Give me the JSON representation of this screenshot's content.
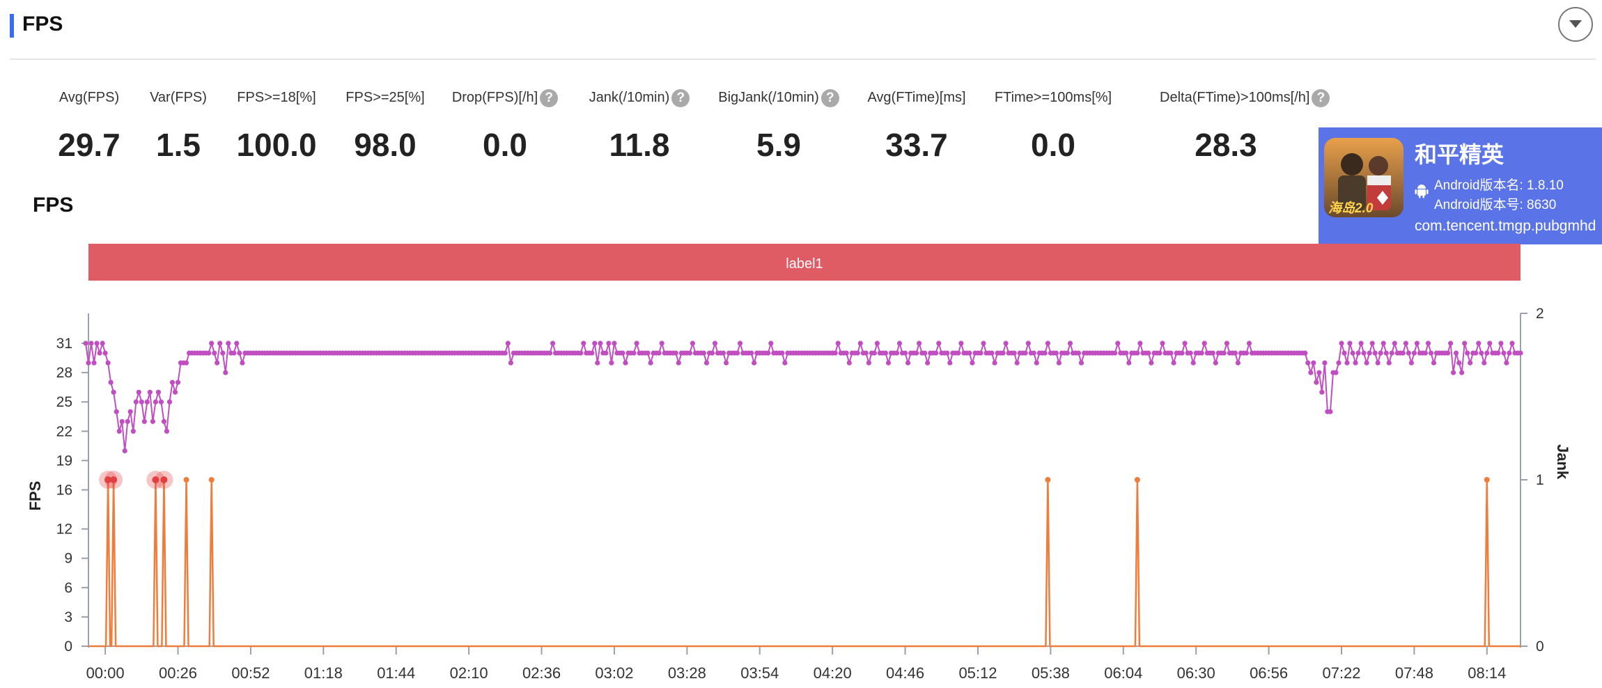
{
  "header": {
    "title": "FPS"
  },
  "metrics": [
    {
      "label": "Avg(FPS)",
      "value": "29.7",
      "help": false
    },
    {
      "label": "Var(FPS)",
      "value": "1.5",
      "help": false
    },
    {
      "label": "FPS>=18[%]",
      "value": "100.0",
      "help": false
    },
    {
      "label": "FPS>=25[%]",
      "value": "98.0",
      "help": false
    },
    {
      "label": "Drop(FPS)[/h]",
      "value": "0.0",
      "help": true
    },
    {
      "label": "Jank(/10min)",
      "value": "11.8",
      "help": true
    },
    {
      "label": "BigJank(/10min)",
      "value": "5.9",
      "help": true
    },
    {
      "label": "Avg(FTime)[ms]",
      "value": "33.7",
      "help": false
    },
    {
      "label": "FTime>=100ms[%]",
      "value": "0.0",
      "help": false
    },
    {
      "label": "Delta(FTime)>100ms[/h]",
      "value": "28.3",
      "help": true
    }
  ],
  "help_glyph": "?",
  "app": {
    "name": "和平精英",
    "android_version_name": "Android版本名: 1.8.10",
    "android_version_code": "Android版本号: 8630",
    "package": "com.tencent.tmgp.pubgmhd",
    "icon_text": "海岛2.0"
  },
  "chart_data": {
    "type": "line",
    "title": "FPS",
    "band_label": "label1",
    "band_color": "#e05c65",
    "ylabel": "FPS",
    "y2label": "Jank",
    "ylim": [
      0,
      31
    ],
    "y2lim": [
      0,
      2
    ],
    "yticks": [
      0,
      3,
      6,
      9,
      12,
      16,
      19,
      22,
      25,
      28,
      31
    ],
    "y2ticks": [
      0,
      1,
      2
    ],
    "xlabel": "",
    "xticks": [
      "00:00",
      "00:26",
      "00:52",
      "01:18",
      "01:44",
      "02:10",
      "02:36",
      "03:02",
      "03:28",
      "03:54",
      "04:20",
      "04:46",
      "05:12",
      "05:38",
      "06:04",
      "06:30",
      "06:56",
      "07:22",
      "07:48",
      "08:14"
    ],
    "x_range_seconds": [
      -6,
      506
    ],
    "series": [
      {
        "name": "FPS",
        "axis": "left",
        "color": "#c04ec1",
        "baseline": 30,
        "points": [
          [
            -7,
            31
          ],
          [
            -6,
            29
          ],
          [
            -5,
            31
          ],
          [
            -4,
            29
          ],
          [
            -3,
            31
          ],
          [
            -2,
            30
          ],
          [
            -1,
            31
          ],
          [
            0,
            30
          ],
          [
            1,
            29
          ],
          [
            2,
            27
          ],
          [
            3,
            26
          ],
          [
            4,
            24
          ],
          [
            5,
            22
          ],
          [
            6,
            23
          ],
          [
            7,
            20
          ],
          [
            8,
            23
          ],
          [
            9,
            24
          ],
          [
            10,
            22
          ],
          [
            11,
            25
          ],
          [
            12,
            26
          ],
          [
            13,
            25
          ],
          [
            14,
            23
          ],
          [
            15,
            25
          ],
          [
            16,
            26
          ],
          [
            17,
            23
          ],
          [
            18,
            25
          ],
          [
            19,
            26
          ],
          [
            20,
            25
          ],
          [
            21,
            23
          ],
          [
            22,
            22
          ],
          [
            23,
            25
          ],
          [
            24,
            27
          ],
          [
            25,
            26
          ],
          [
            26,
            27
          ],
          [
            27,
            29
          ],
          [
            28,
            29
          ],
          [
            29,
            29
          ],
          [
            30,
            30
          ],
          [
            31,
            30
          ],
          [
            38,
            31
          ],
          [
            39,
            30
          ],
          [
            40,
            29
          ],
          [
            41,
            31
          ],
          [
            42,
            30
          ],
          [
            43,
            28
          ],
          [
            44,
            31
          ],
          [
            45,
            30
          ],
          [
            46,
            30
          ],
          [
            47,
            31
          ],
          [
            48,
            30
          ],
          [
            49,
            29
          ],
          [
            50,
            30
          ],
          [
            144,
            31
          ],
          [
            145,
            29
          ],
          [
            160,
            31
          ],
          [
            171,
            31
          ],
          [
            175,
            31
          ],
          [
            176,
            29
          ],
          [
            177,
            31
          ],
          [
            178,
            30
          ],
          [
            180,
            31
          ],
          [
            181,
            29
          ],
          [
            182,
            31
          ],
          [
            186,
            29
          ],
          [
            190,
            31
          ],
          [
            195,
            29
          ],
          [
            199,
            31
          ],
          [
            205,
            29
          ],
          [
            210,
            31
          ],
          [
            215,
            29
          ],
          [
            218,
            31
          ],
          [
            222,
            29
          ],
          [
            227,
            31
          ],
          [
            232,
            29
          ],
          [
            238,
            31
          ],
          [
            243,
            29
          ],
          [
            262,
            31
          ],
          [
            266,
            29
          ],
          [
            270,
            31
          ],
          [
            273,
            29
          ],
          [
            276,
            31
          ],
          [
            280,
            29
          ],
          [
            284,
            31
          ],
          [
            287,
            29
          ],
          [
            291,
            31
          ],
          [
            294,
            29
          ],
          [
            298,
            31
          ],
          [
            302,
            29
          ],
          [
            306,
            31
          ],
          [
            310,
            29
          ],
          [
            314,
            31
          ],
          [
            318,
            29
          ],
          [
            322,
            31
          ],
          [
            326,
            29
          ],
          [
            330,
            31
          ],
          [
            333,
            29
          ],
          [
            337,
            31
          ],
          [
            341,
            29
          ],
          [
            345,
            31
          ],
          [
            349,
            29
          ],
          [
            362,
            31
          ],
          [
            366,
            29
          ],
          [
            370,
            31
          ],
          [
            374,
            29
          ],
          [
            378,
            31
          ],
          [
            382,
            29
          ],
          [
            386,
            31
          ],
          [
            389,
            29
          ],
          [
            393,
            31
          ],
          [
            397,
            29
          ],
          [
            401,
            31
          ],
          [
            405,
            29
          ],
          [
            409,
            31
          ],
          [
            430,
            29
          ],
          [
            431,
            28
          ],
          [
            432,
            29
          ],
          [
            433,
            27
          ],
          [
            434,
            28
          ],
          [
            435,
            26
          ],
          [
            436,
            29
          ],
          [
            437,
            24
          ],
          [
            438,
            24
          ],
          [
            439,
            28
          ],
          [
            440,
            28
          ],
          [
            441,
            29
          ],
          [
            442,
            31
          ],
          [
            443,
            30
          ],
          [
            444,
            29
          ],
          [
            445,
            31
          ],
          [
            447,
            29
          ],
          [
            449,
            31
          ],
          [
            451,
            29
          ],
          [
            453,
            31
          ],
          [
            455,
            29
          ],
          [
            457,
            31
          ],
          [
            459,
            29
          ],
          [
            461,
            31
          ],
          [
            463,
            30
          ],
          [
            465,
            31
          ],
          [
            467,
            29
          ],
          [
            469,
            31
          ],
          [
            471,
            30
          ],
          [
            473,
            31
          ],
          [
            475,
            29
          ],
          [
            481,
            31
          ],
          [
            482,
            28
          ],
          [
            484,
            29
          ],
          [
            485,
            28
          ],
          [
            486,
            31
          ],
          [
            488,
            29
          ],
          [
            489,
            30
          ],
          [
            491,
            31
          ],
          [
            493,
            29
          ],
          [
            495,
            31
          ],
          [
            497,
            30
          ],
          [
            499,
            31
          ],
          [
            501,
            29
          ],
          [
            503,
            31
          ],
          [
            505,
            30
          ],
          [
            506,
            30
          ]
        ]
      },
      {
        "name": "Jank",
        "axis": "right",
        "color": "#f07c3c",
        "spikes_x": [
          1,
          3,
          18,
          21,
          29,
          38,
          337,
          369,
          494
        ],
        "big_jank_x": [
          1,
          3,
          18,
          21
        ],
        "big_jank_color": "#e0403f"
      }
    ],
    "grid": false,
    "legend": "none"
  }
}
